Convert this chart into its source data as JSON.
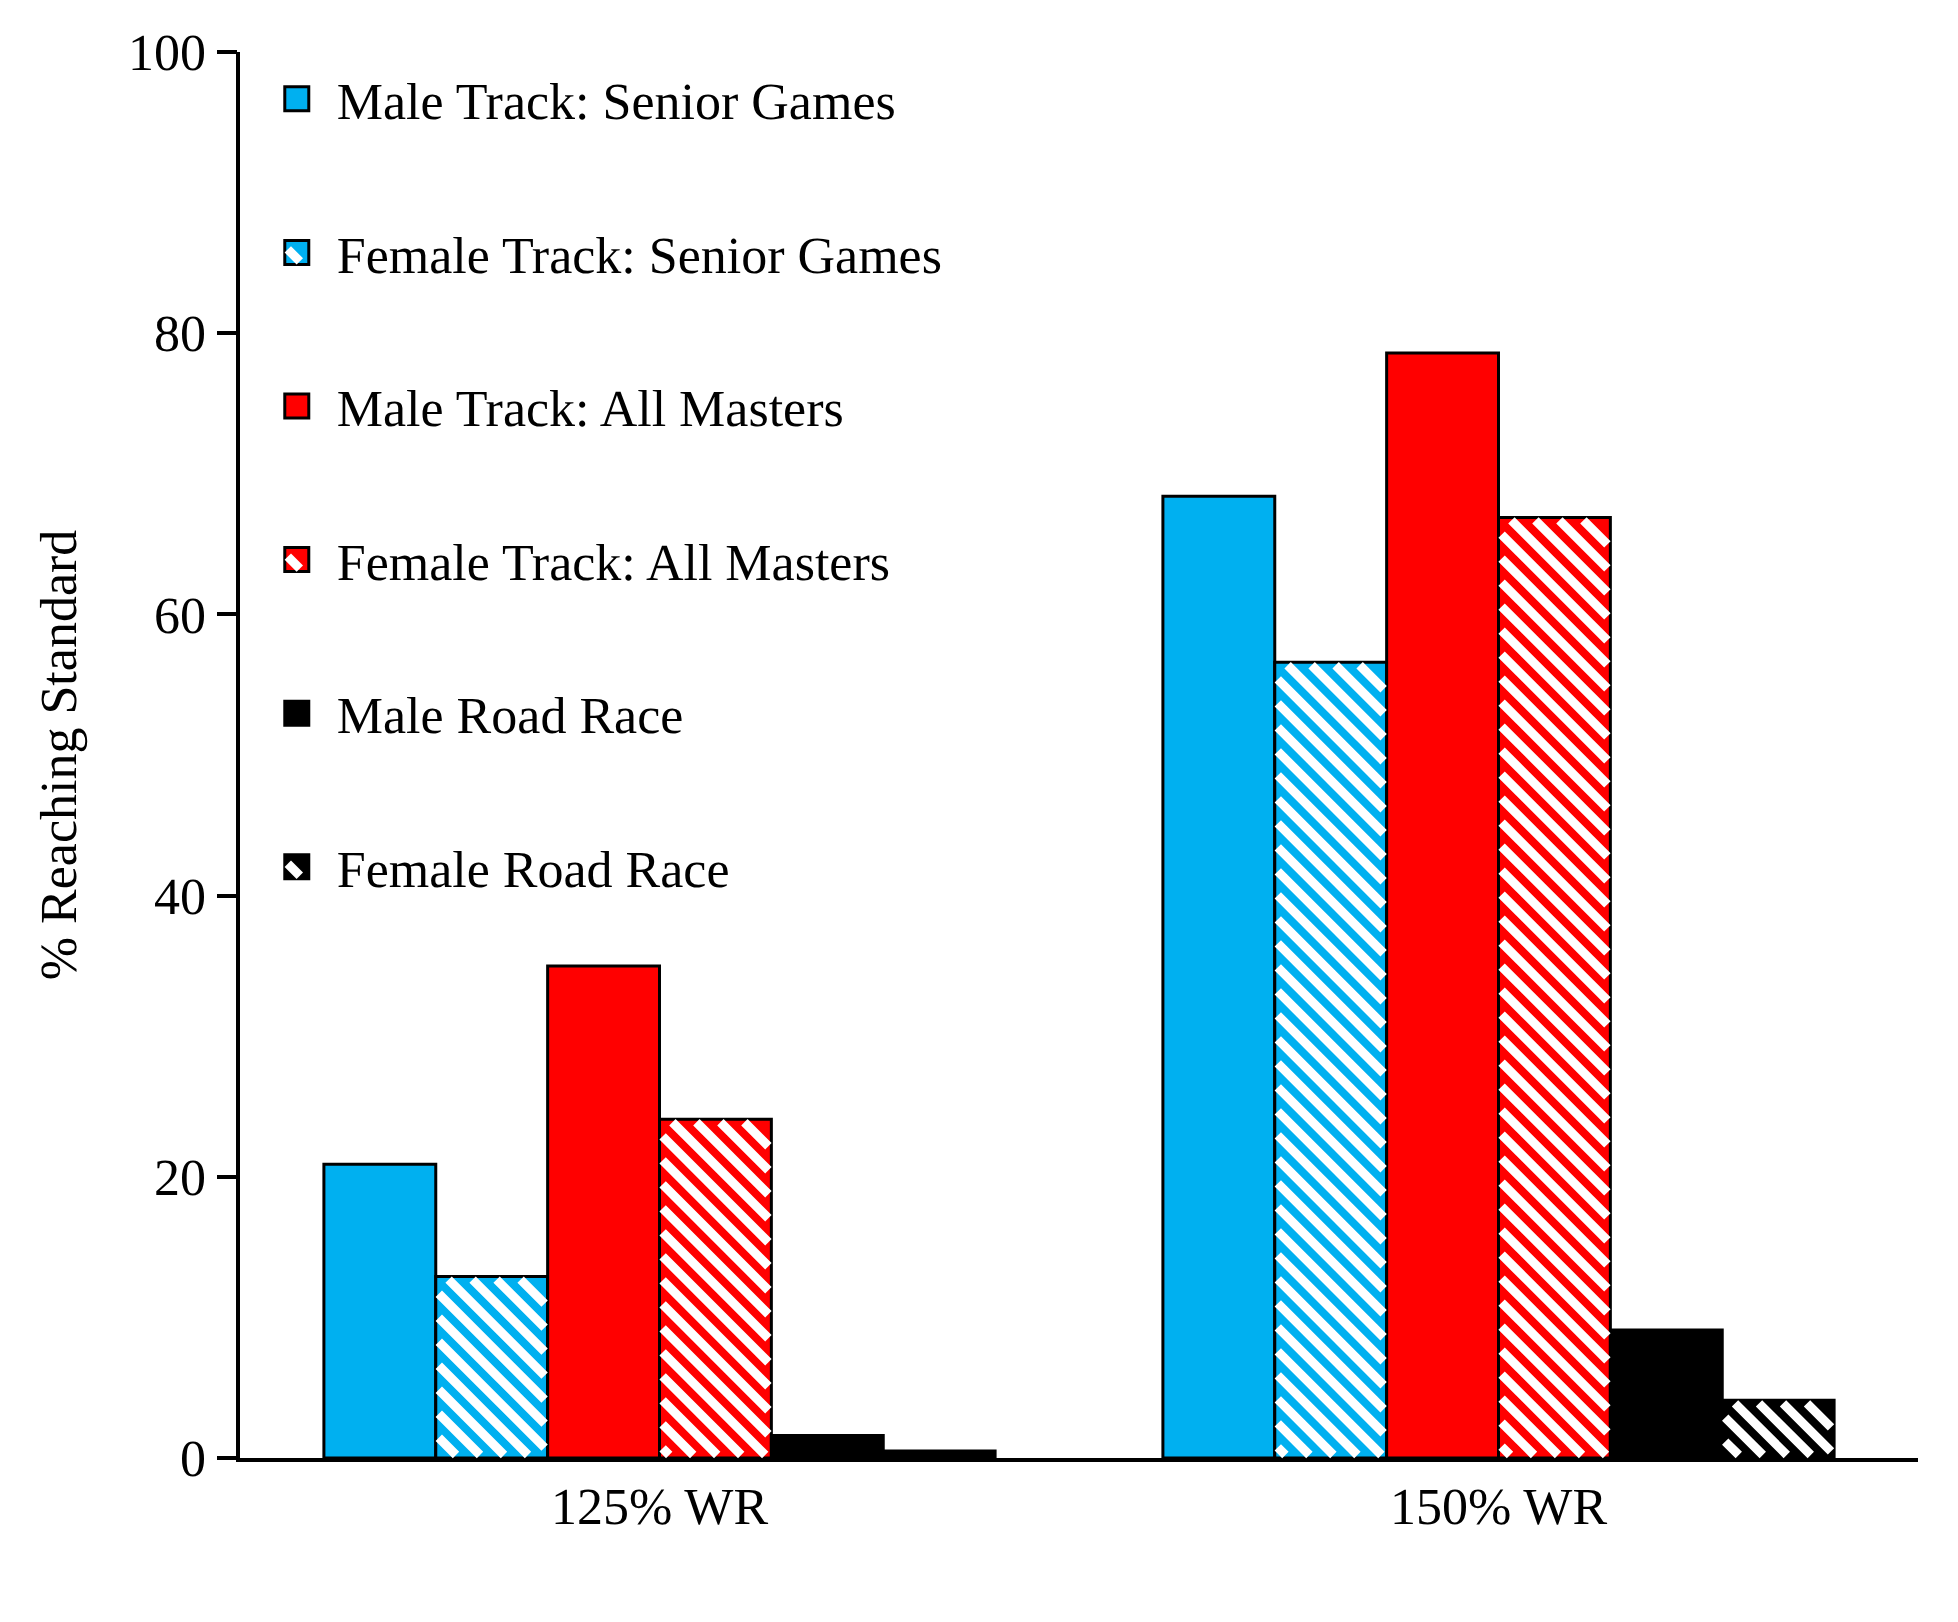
{
  "chart_data": {
    "type": "bar",
    "ylabel": "% Reaching Standard",
    "categories": [
      "125% WR",
      "150% WR"
    ],
    "series": [
      {
        "name": "Male Track: Senior Games",
        "color": "#00b0f0",
        "values": [
          20.9,
          68.4
        ]
      },
      {
        "name": "Female Track: Senior Games",
        "color": "#00b0f0",
        "values": [
          12.9,
          56.6
        ]
      },
      {
        "name": "Male Track: All Masters",
        "color": "#ff0000",
        "values": [
          35.0,
          78.6
        ]
      },
      {
        "name": "Female Track: All Masters",
        "color": "#ff0000",
        "values": [
          24.1,
          66.9
        ]
      },
      {
        "name": "Male Road Race",
        "color": "#000000",
        "values": [
          1.6,
          9.1
        ]
      },
      {
        "name": "Female Road Race",
        "color": "#000000",
        "values": [
          0.5,
          4.1
        ]
      }
    ],
    "ylim": [
      0,
      100
    ],
    "yticks": [
      0,
      20,
      40,
      60,
      80,
      100
    ],
    "grid": false,
    "legend": "top left"
  }
}
